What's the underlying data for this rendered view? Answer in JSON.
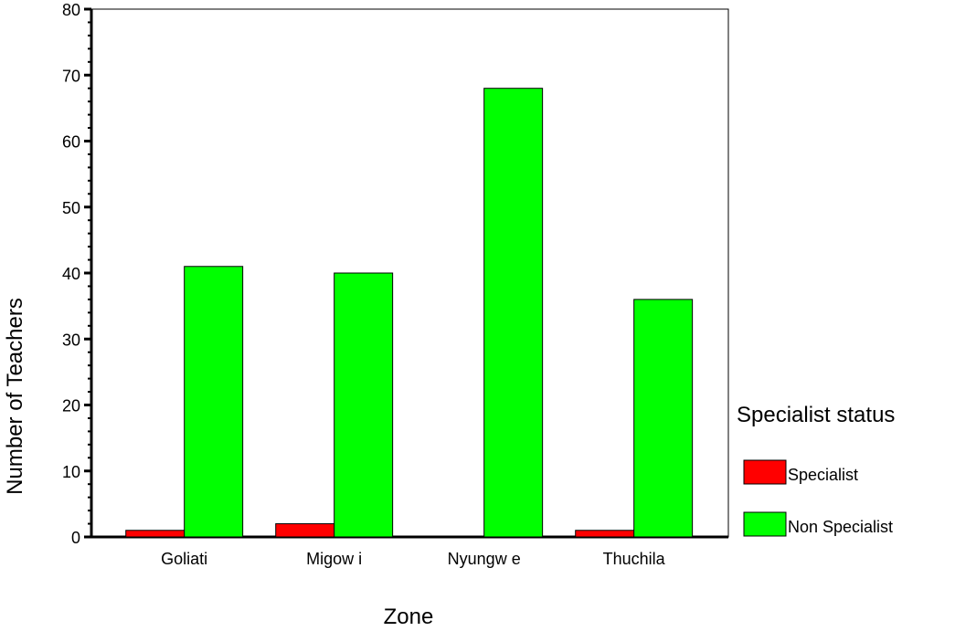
{
  "chart_data": {
    "type": "bar",
    "title": "",
    "xlabel": "Zone",
    "ylabel": "Number of Teachers",
    "categories": [
      "Goliati",
      "Migow i",
      "Nyungw e",
      "Thuchila"
    ],
    "series": [
      {
        "name": "Specialist",
        "values": [
          1,
          2,
          0,
          1
        ],
        "color": "#ff0000"
      },
      {
        "name": "Non Specialist",
        "values": [
          41,
          40,
          68,
          36
        ],
        "color": "#00ff00"
      }
    ],
    "ylim": [
      0,
      80
    ],
    "yticks": [
      0,
      10,
      20,
      30,
      40,
      50,
      60,
      70,
      80
    ],
    "grid": false,
    "legend": {
      "title": "Specialist status",
      "position": "right"
    }
  }
}
